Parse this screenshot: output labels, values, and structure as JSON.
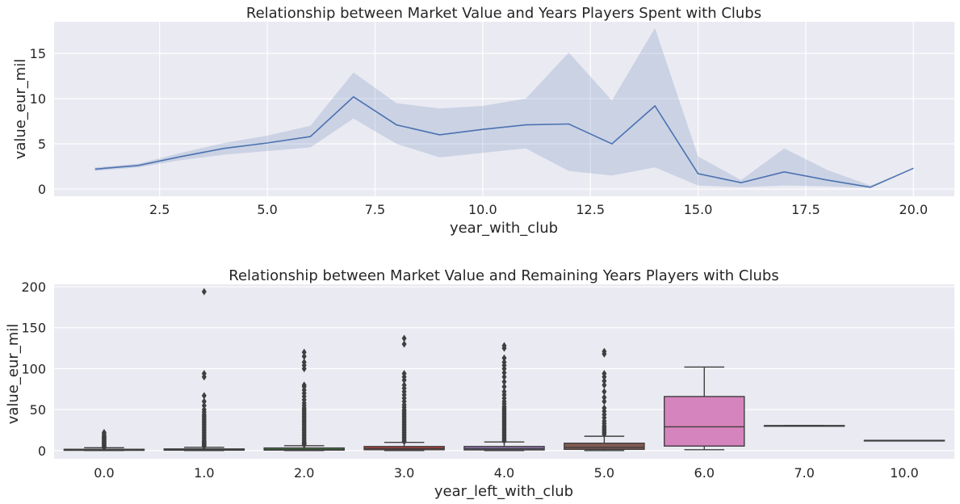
{
  "chart_data": [
    {
      "type": "line",
      "title": "Relationship between Market Value and Years Players Spent with Clubs",
      "xlabel": "year_with_club",
      "ylabel": "value_eur_mil",
      "xlim": [
        0.05,
        20.95
      ],
      "ylim": [
        -0.8,
        18.5
      ],
      "xticks": [
        2.5,
        5.0,
        7.5,
        10.0,
        12.5,
        15.0,
        17.5,
        20.0
      ],
      "xtick_labels": [
        "2.5",
        "5.0",
        "7.5",
        "10.0",
        "12.5",
        "15.0",
        "17.5",
        "20.0"
      ],
      "yticks": [
        0,
        5,
        10,
        15
      ],
      "ytick_labels": [
        "0",
        "5",
        "10",
        "15"
      ],
      "grid": true,
      "colors": {
        "line": "#4c72b0",
        "band": "#4c72b0",
        "background": "#eaeaf2",
        "grid": "#ffffff"
      },
      "series": [
        {
          "x": [
            1,
            2,
            3,
            4,
            5,
            6,
            7,
            8,
            9,
            10,
            11,
            12,
            13,
            14,
            15,
            16,
            17,
            18,
            19,
            20
          ],
          "y": [
            2.2,
            2.6,
            3.6,
            4.5,
            5.1,
            5.8,
            10.2,
            7.1,
            6.0,
            6.6,
            7.1,
            7.2,
            5.0,
            9.2,
            1.7,
            0.7,
            1.9,
            1.0,
            0.2,
            2.3
          ],
          "ci_low": [
            2.0,
            2.4,
            3.2,
            3.8,
            4.2,
            4.6,
            7.8,
            5.0,
            3.5,
            4.0,
            4.5,
            2.0,
            1.5,
            2.4,
            0.4,
            0.2,
            0.4,
            0.3,
            0.1,
            2.3
          ],
          "ci_high": [
            2.4,
            2.8,
            4.0,
            5.1,
            5.9,
            7.0,
            12.9,
            9.5,
            8.9,
            9.2,
            10.0,
            15.1,
            9.8,
            17.8,
            3.6,
            1.0,
            4.5,
            2.1,
            0.4,
            2.3
          ]
        }
      ]
    },
    {
      "type": "box",
      "title": "Relationship between Market Value and Remaining Years Players with Clubs",
      "xlabel": "year_left_with_club",
      "ylabel": "value_eur_mil",
      "ylim": [
        -10,
        203
      ],
      "yticks": [
        0,
        50,
        100,
        150,
        200
      ],
      "ytick_labels": [
        "0",
        "50",
        "100",
        "150",
        "200"
      ],
      "grid": true,
      "categories": [
        "0.0",
        "1.0",
        "2.0",
        "3.0",
        "4.0",
        "5.0",
        "6.0",
        "7.0",
        "10.0"
      ],
      "boxes": [
        {
          "color": "#3274a1",
          "whislo": 0,
          "q1": 0.3,
          "med": 0.7,
          "q3": 1.6,
          "whishi": 3.5,
          "fliers": [
            4,
            5,
            6,
            7,
            8,
            9,
            10,
            11,
            12,
            13,
            14,
            15,
            16,
            17,
            18,
            20,
            22
          ]
        },
        {
          "color": "#e1812c",
          "whislo": 0,
          "q1": 0.5,
          "med": 1.0,
          "q3": 2.0,
          "whishi": 4.0,
          "fliers": [
            5,
            6,
            7,
            8,
            9,
            10,
            11,
            12,
            14,
            16,
            18,
            20,
            22,
            24,
            26,
            28,
            30,
            32,
            34,
            36,
            38,
            40,
            42,
            44,
            47,
            50,
            55,
            60,
            67,
            90,
            94,
            194
          ]
        },
        {
          "color": "#3a923a",
          "whislo": 0,
          "q1": 0.6,
          "med": 1.3,
          "q3": 3.2,
          "whishi": 6.0,
          "fliers": [
            7,
            8,
            9,
            10,
            12,
            14,
            16,
            18,
            20,
            22,
            24,
            26,
            28,
            30,
            32,
            34,
            36,
            38,
            40,
            42,
            44,
            46,
            48,
            50,
            52,
            55,
            58,
            62,
            66,
            70,
            74,
            78,
            80,
            100,
            104,
            108,
            115,
            120
          ]
        },
        {
          "color": "#c03d3e",
          "whislo": 0,
          "q1": 1.0,
          "med": 2.5,
          "q3": 5.0,
          "whishi": 10.0,
          "fliers": [
            11,
            12,
            14,
            16,
            18,
            20,
            22,
            24,
            26,
            28,
            30,
            32,
            34,
            36,
            38,
            40,
            42,
            44,
            46,
            48,
            50,
            53,
            56,
            60,
            64,
            68,
            72,
            76,
            80,
            86,
            90,
            94,
            130,
            137
          ]
        },
        {
          "color": "#9372b2",
          "whislo": 0,
          "q1": 0.8,
          "med": 2.3,
          "q3": 5.0,
          "whishi": 10.5,
          "fliers": [
            12,
            14,
            16,
            18,
            20,
            22,
            24,
            26,
            28,
            30,
            32,
            34,
            36,
            38,
            40,
            42,
            44,
            46,
            48,
            50,
            52,
            54,
            57,
            60,
            64,
            68,
            72,
            78,
            84,
            90,
            95,
            100,
            104,
            108,
            113,
            125,
            128
          ]
        },
        {
          "color": "#845b53",
          "whislo": 0,
          "q1": 1.5,
          "med": 4.0,
          "q3": 9.0,
          "whishi": 17.5,
          "fliers": [
            20,
            22,
            24,
            26,
            28,
            30,
            33,
            36,
            40,
            44,
            48,
            52,
            60,
            65,
            72,
            80,
            85,
            90,
            94,
            118,
            121
          ]
        },
        {
          "color": "#d684bd",
          "whislo": 1,
          "q1": 5.5,
          "med": 29,
          "q3": 66,
          "whishi": 102,
          "fliers": []
        },
        {
          "color": "#7f7f7f",
          "whislo": 30.5,
          "q1": 30.5,
          "med": 30.5,
          "q3": 30.5,
          "whishi": 30.5,
          "fliers": []
        },
        {
          "color": "#a9aa35",
          "whislo": 12.5,
          "q1": 12.5,
          "med": 12.5,
          "q3": 12.5,
          "whishi": 12.5,
          "fliers": []
        }
      ]
    }
  ]
}
